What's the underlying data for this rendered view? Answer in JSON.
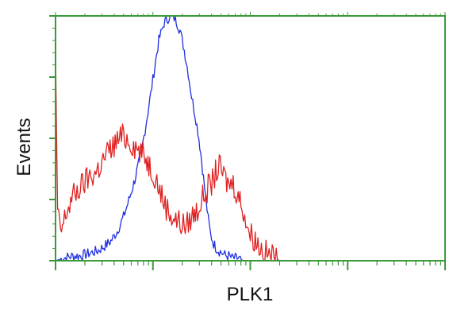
{
  "chart_data": {
    "type": "line",
    "title": "",
    "xlabel": "PLK1",
    "ylabel": "Events",
    "x_scale": "log",
    "xlim": [
      1,
      10000
    ],
    "ylim": [
      0,
      100
    ],
    "grid": false,
    "legend": "none",
    "colors": {
      "frame": "#3a9a3a",
      "background": "#ffffff"
    },
    "series": [
      {
        "color": "#1f2fe0",
        "x": [
          1.0,
          1.2,
          1.5,
          1.8,
          2.2,
          2.7,
          3.2,
          3.7,
          4.3,
          5.0,
          5.8,
          6.5,
          7.5,
          8.5,
          9.5,
          10.5,
          11.5,
          13.0,
          15.0,
          17.0,
          19.0,
          21.0,
          23.0,
          25.0,
          27.0,
          29.0,
          31.0,
          33.0,
          35.0,
          37.0,
          39.0,
          42.0,
          45.0,
          48.0,
          52.0,
          56.0,
          60.0,
          65.0,
          70.0,
          75.0,
          85.0,
          95.0,
          110.0,
          130.0
        ],
        "y": [
          0,
          1,
          2,
          2,
          3,
          4,
          6,
          8,
          12,
          18,
          26,
          33,
          43,
          56,
          68,
          80,
          90,
          97,
          100,
          99,
          94,
          86,
          77,
          67,
          60,
          53,
          44,
          34,
          25,
          17,
          11,
          7,
          5,
          4,
          3,
          2,
          2,
          1,
          1,
          1,
          0,
          0,
          0,
          0
        ]
      },
      {
        "color": "#e02020",
        "x": [
          1.0,
          1.05,
          1.15,
          1.3,
          1.5,
          1.8,
          2.2,
          2.6,
          3.0,
          3.4,
          3.8,
          4.3,
          5.0,
          5.7,
          6.5,
          7.5,
          8.5,
          9.5,
          10.5,
          11.5,
          13.0,
          14.5,
          16.0,
          18.0,
          20.0,
          22.0,
          25.0,
          28.0,
          31.0,
          34.0,
          37.0,
          40.0,
          44.0,
          48.0,
          52.0,
          56.0,
          60.0,
          65.0,
          70.0,
          75.0,
          80.0,
          85.0,
          90.0,
          95.0,
          100.0,
          110.0,
          120.0,
          130.0,
          145.0,
          160.0,
          180.0,
          200.0,
          220.0
        ],
        "y": [
          85,
          18,
          12,
          20,
          26,
          30,
          34,
          36,
          40,
          44,
          46,
          49,
          51,
          49,
          47,
          44,
          42,
          38,
          35,
          30,
          24,
          20,
          18,
          16,
          15,
          14,
          18,
          20,
          24,
          27,
          30,
          31,
          36,
          38,
          36,
          33,
          31,
          32,
          30,
          26,
          24,
          21,
          17,
          13,
          11,
          9,
          7,
          5,
          3,
          2,
          1,
          0,
          0
        ]
      }
    ]
  }
}
